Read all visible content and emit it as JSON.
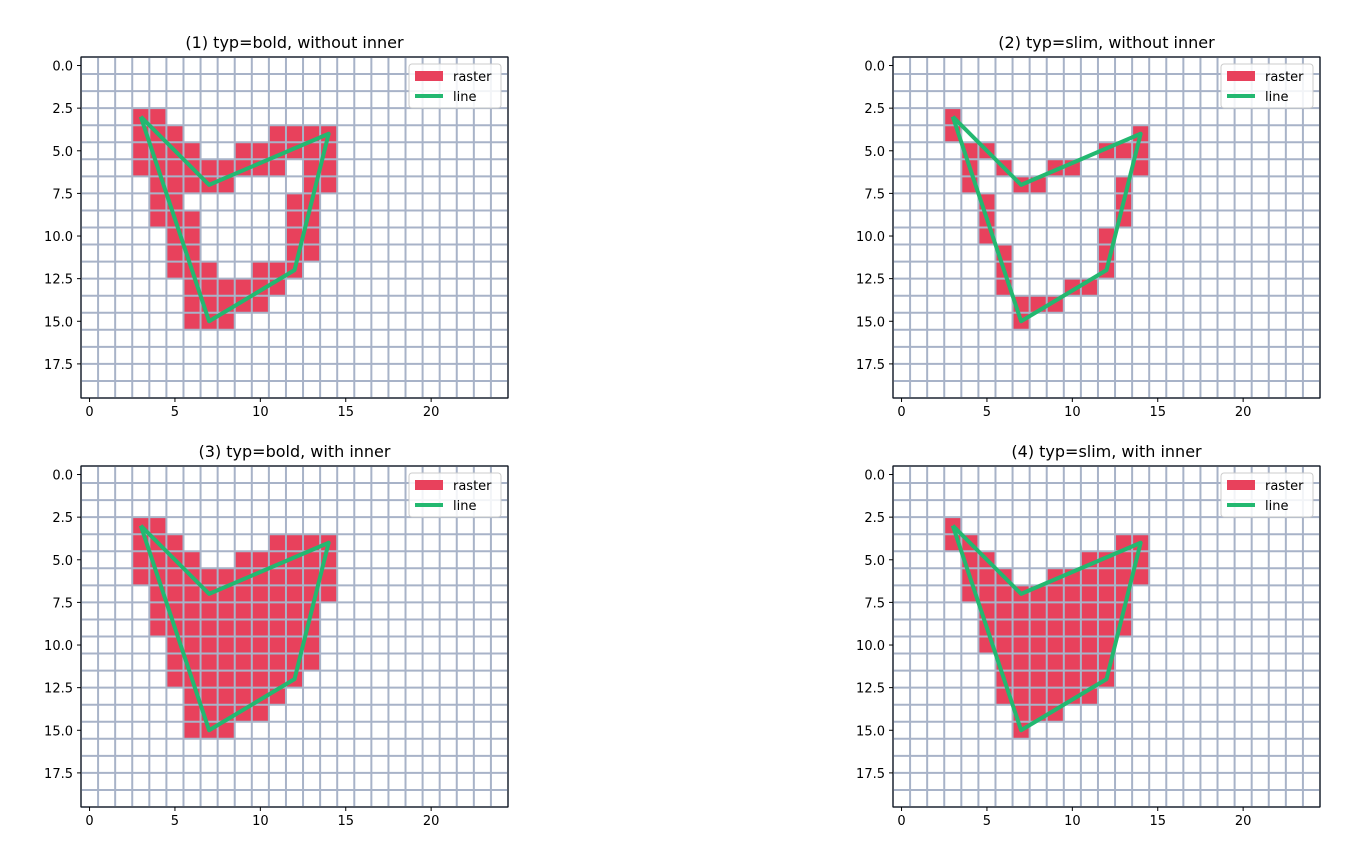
{
  "chart_data": [
    {
      "type": "heatmap",
      "title": "(1) typ=bold, without inner",
      "xlim": [
        -0.5,
        24.5
      ],
      "ylim": [
        19.5,
        -0.5
      ],
      "x_ticks": [
        0,
        5,
        10,
        15,
        20
      ],
      "x_tick_labels": [
        "0",
        "5",
        "10",
        "15",
        "20"
      ],
      "y_ticks": [
        0,
        2.5,
        5,
        7.5,
        10,
        12.5,
        15,
        17.5
      ],
      "y_tick_labels": [
        "0.0",
        "2.5",
        "5.0",
        "7.5",
        "10.0",
        "12.5",
        "15.0",
        "17.5"
      ],
      "grid": true,
      "legend": {
        "placement": "top-right",
        "entries": [
          "raster",
          "line"
        ]
      },
      "raster_cells": [
        [
          3,
          3
        ],
        [
          4,
          3
        ],
        [
          3,
          4
        ],
        [
          4,
          4
        ],
        [
          5,
          4
        ],
        [
          11,
          4
        ],
        [
          12,
          4
        ],
        [
          13,
          4
        ],
        [
          14,
          4
        ],
        [
          3,
          5
        ],
        [
          4,
          5
        ],
        [
          5,
          5
        ],
        [
          6,
          5
        ],
        [
          9,
          5
        ],
        [
          10,
          5
        ],
        [
          11,
          5
        ],
        [
          12,
          5
        ],
        [
          13,
          5
        ],
        [
          14,
          5
        ],
        [
          3,
          6
        ],
        [
          4,
          6
        ],
        [
          5,
          6
        ],
        [
          6,
          6
        ],
        [
          7,
          6
        ],
        [
          8,
          6
        ],
        [
          9,
          6
        ],
        [
          10,
          6
        ],
        [
          11,
          6
        ],
        [
          13,
          6
        ],
        [
          14,
          6
        ],
        [
          4,
          7
        ],
        [
          5,
          7
        ],
        [
          6,
          7
        ],
        [
          7,
          7
        ],
        [
          8,
          7
        ],
        [
          13,
          7
        ],
        [
          14,
          7
        ],
        [
          4,
          8
        ],
        [
          5,
          8
        ],
        [
          12,
          8
        ],
        [
          13,
          8
        ],
        [
          4,
          9
        ],
        [
          5,
          9
        ],
        [
          6,
          9
        ],
        [
          12,
          9
        ],
        [
          13,
          9
        ],
        [
          5,
          10
        ],
        [
          6,
          10
        ],
        [
          12,
          10
        ],
        [
          13,
          10
        ],
        [
          5,
          11
        ],
        [
          6,
          11
        ],
        [
          12,
          11
        ],
        [
          13,
          11
        ],
        [
          5,
          12
        ],
        [
          6,
          12
        ],
        [
          7,
          12
        ],
        [
          10,
          12
        ],
        [
          11,
          12
        ],
        [
          12,
          12
        ],
        [
          6,
          13
        ],
        [
          7,
          13
        ],
        [
          8,
          13
        ],
        [
          9,
          13
        ],
        [
          10,
          13
        ],
        [
          11,
          13
        ],
        [
          6,
          14
        ],
        [
          7,
          14
        ],
        [
          8,
          14
        ],
        [
          9,
          14
        ],
        [
          10,
          14
        ],
        [
          6,
          15
        ],
        [
          7,
          15
        ],
        [
          8,
          15
        ]
      ],
      "line": [
        [
          3,
          3
        ],
        [
          7,
          7
        ],
        [
          14,
          4
        ],
        [
          12,
          12
        ],
        [
          7,
          15
        ],
        [
          3,
          3
        ]
      ]
    },
    {
      "type": "heatmap",
      "title": "(2) typ=slim, without inner",
      "xlim": [
        -0.5,
        24.5
      ],
      "ylim": [
        19.5,
        -0.5
      ],
      "x_ticks": [
        0,
        5,
        10,
        15,
        20
      ],
      "x_tick_labels": [
        "0",
        "5",
        "10",
        "15",
        "20"
      ],
      "y_ticks": [
        0,
        2.5,
        5,
        7.5,
        10,
        12.5,
        15,
        17.5
      ],
      "y_tick_labels": [
        "0.0",
        "2.5",
        "5.0",
        "7.5",
        "10.0",
        "12.5",
        "15.0",
        "17.5"
      ],
      "grid": true,
      "legend": {
        "placement": "top-right",
        "entries": [
          "raster",
          "line"
        ]
      },
      "raster_cells": [
        [
          3,
          3
        ],
        [
          3,
          4
        ],
        [
          14,
          4
        ],
        [
          4,
          5
        ],
        [
          5,
          5
        ],
        [
          12,
          5
        ],
        [
          13,
          5
        ],
        [
          14,
          5
        ],
        [
          4,
          6
        ],
        [
          6,
          6
        ],
        [
          9,
          6
        ],
        [
          10,
          6
        ],
        [
          14,
          6
        ],
        [
          4,
          7
        ],
        [
          7,
          7
        ],
        [
          8,
          7
        ],
        [
          13,
          7
        ],
        [
          5,
          8
        ],
        [
          13,
          8
        ],
        [
          5,
          9
        ],
        [
          13,
          9
        ],
        [
          5,
          10
        ],
        [
          12,
          10
        ],
        [
          6,
          11
        ],
        [
          12,
          11
        ],
        [
          6,
          12
        ],
        [
          12,
          12
        ],
        [
          6,
          13
        ],
        [
          10,
          13
        ],
        [
          11,
          13
        ],
        [
          7,
          14
        ],
        [
          8,
          14
        ],
        [
          9,
          14
        ],
        [
          7,
          15
        ]
      ],
      "line": [
        [
          3,
          3
        ],
        [
          7,
          7
        ],
        [
          14,
          4
        ],
        [
          12,
          12
        ],
        [
          7,
          15
        ],
        [
          3,
          3
        ]
      ]
    },
    {
      "type": "heatmap",
      "title": "(3) typ=bold, with inner",
      "xlim": [
        -0.5,
        24.5
      ],
      "ylim": [
        19.5,
        -0.5
      ],
      "x_ticks": [
        0,
        5,
        10,
        15,
        20
      ],
      "x_tick_labels": [
        "0",
        "5",
        "10",
        "15",
        "20"
      ],
      "y_ticks": [
        0,
        2.5,
        5,
        7.5,
        10,
        12.5,
        15,
        17.5
      ],
      "y_tick_labels": [
        "0.0",
        "2.5",
        "5.0",
        "7.5",
        "10.0",
        "12.5",
        "15.0",
        "17.5"
      ],
      "grid": true,
      "legend": {
        "placement": "top-right",
        "entries": [
          "raster",
          "line"
        ]
      },
      "raster_cells": [
        [
          3,
          3
        ],
        [
          4,
          3
        ],
        [
          3,
          4
        ],
        [
          4,
          4
        ],
        [
          5,
          4
        ],
        [
          11,
          4
        ],
        [
          12,
          4
        ],
        [
          13,
          4
        ],
        [
          14,
          4
        ],
        [
          3,
          5
        ],
        [
          4,
          5
        ],
        [
          5,
          5
        ],
        [
          6,
          5
        ],
        [
          9,
          5
        ],
        [
          10,
          5
        ],
        [
          11,
          5
        ],
        [
          12,
          5
        ],
        [
          13,
          5
        ],
        [
          14,
          5
        ],
        [
          3,
          6
        ],
        [
          4,
          6
        ],
        [
          5,
          6
        ],
        [
          6,
          6
        ],
        [
          7,
          6
        ],
        [
          8,
          6
        ],
        [
          9,
          6
        ],
        [
          10,
          6
        ],
        [
          11,
          6
        ],
        [
          12,
          6
        ],
        [
          13,
          6
        ],
        [
          14,
          6
        ],
        [
          4,
          7
        ],
        [
          5,
          7
        ],
        [
          6,
          7
        ],
        [
          7,
          7
        ],
        [
          8,
          7
        ],
        [
          9,
          7
        ],
        [
          10,
          7
        ],
        [
          11,
          7
        ],
        [
          12,
          7
        ],
        [
          13,
          7
        ],
        [
          14,
          7
        ],
        [
          4,
          8
        ],
        [
          5,
          8
        ],
        [
          6,
          8
        ],
        [
          7,
          8
        ],
        [
          8,
          8
        ],
        [
          9,
          8
        ],
        [
          10,
          8
        ],
        [
          11,
          8
        ],
        [
          12,
          8
        ],
        [
          13,
          8
        ],
        [
          4,
          9
        ],
        [
          5,
          9
        ],
        [
          6,
          9
        ],
        [
          7,
          9
        ],
        [
          8,
          9
        ],
        [
          9,
          9
        ],
        [
          10,
          9
        ],
        [
          11,
          9
        ],
        [
          12,
          9
        ],
        [
          13,
          9
        ],
        [
          5,
          10
        ],
        [
          6,
          10
        ],
        [
          7,
          10
        ],
        [
          8,
          10
        ],
        [
          9,
          10
        ],
        [
          10,
          10
        ],
        [
          11,
          10
        ],
        [
          12,
          10
        ],
        [
          13,
          10
        ],
        [
          5,
          11
        ],
        [
          6,
          11
        ],
        [
          7,
          11
        ],
        [
          8,
          11
        ],
        [
          9,
          11
        ],
        [
          10,
          11
        ],
        [
          11,
          11
        ],
        [
          12,
          11
        ],
        [
          13,
          11
        ],
        [
          5,
          12
        ],
        [
          6,
          12
        ],
        [
          7,
          12
        ],
        [
          8,
          12
        ],
        [
          9,
          12
        ],
        [
          10,
          12
        ],
        [
          11,
          12
        ],
        [
          12,
          12
        ],
        [
          6,
          13
        ],
        [
          7,
          13
        ],
        [
          8,
          13
        ],
        [
          9,
          13
        ],
        [
          10,
          13
        ],
        [
          11,
          13
        ],
        [
          6,
          14
        ],
        [
          7,
          14
        ],
        [
          8,
          14
        ],
        [
          9,
          14
        ],
        [
          10,
          14
        ],
        [
          6,
          15
        ],
        [
          7,
          15
        ],
        [
          8,
          15
        ]
      ],
      "line": [
        [
          3,
          3
        ],
        [
          7,
          7
        ],
        [
          14,
          4
        ],
        [
          12,
          12
        ],
        [
          7,
          15
        ],
        [
          3,
          3
        ]
      ]
    },
    {
      "type": "heatmap",
      "title": "(4) typ=slim, with inner",
      "xlim": [
        -0.5,
        24.5
      ],
      "ylim": [
        19.5,
        -0.5
      ],
      "x_ticks": [
        0,
        5,
        10,
        15,
        20
      ],
      "x_tick_labels": [
        "0",
        "5",
        "10",
        "15",
        "20"
      ],
      "y_ticks": [
        0,
        2.5,
        5,
        7.5,
        10,
        12.5,
        15,
        17.5
      ],
      "y_tick_labels": [
        "0.0",
        "2.5",
        "5.0",
        "7.5",
        "10.0",
        "12.5",
        "15.0",
        "17.5"
      ],
      "grid": true,
      "legend": {
        "placement": "top-right",
        "entries": [
          "raster",
          "line"
        ]
      },
      "raster_cells": [
        [
          3,
          3
        ],
        [
          3,
          4
        ],
        [
          4,
          4
        ],
        [
          13,
          4
        ],
        [
          14,
          4
        ],
        [
          4,
          5
        ],
        [
          5,
          5
        ],
        [
          11,
          5
        ],
        [
          12,
          5
        ],
        [
          13,
          5
        ],
        [
          14,
          5
        ],
        [
          4,
          6
        ],
        [
          5,
          6
        ],
        [
          6,
          6
        ],
        [
          9,
          6
        ],
        [
          10,
          6
        ],
        [
          11,
          6
        ],
        [
          12,
          6
        ],
        [
          13,
          6
        ],
        [
          14,
          6
        ],
        [
          4,
          7
        ],
        [
          5,
          7
        ],
        [
          6,
          7
        ],
        [
          7,
          7
        ],
        [
          8,
          7
        ],
        [
          9,
          7
        ],
        [
          10,
          7
        ],
        [
          11,
          7
        ],
        [
          12,
          7
        ],
        [
          13,
          7
        ],
        [
          5,
          8
        ],
        [
          6,
          8
        ],
        [
          7,
          8
        ],
        [
          8,
          8
        ],
        [
          9,
          8
        ],
        [
          10,
          8
        ],
        [
          11,
          8
        ],
        [
          12,
          8
        ],
        [
          13,
          8
        ],
        [
          5,
          9
        ],
        [
          6,
          9
        ],
        [
          7,
          9
        ],
        [
          8,
          9
        ],
        [
          9,
          9
        ],
        [
          10,
          9
        ],
        [
          11,
          9
        ],
        [
          12,
          9
        ],
        [
          13,
          9
        ],
        [
          5,
          10
        ],
        [
          6,
          10
        ],
        [
          7,
          10
        ],
        [
          8,
          10
        ],
        [
          9,
          10
        ],
        [
          10,
          10
        ],
        [
          11,
          10
        ],
        [
          12,
          10
        ],
        [
          6,
          11
        ],
        [
          7,
          11
        ],
        [
          8,
          11
        ],
        [
          9,
          11
        ],
        [
          10,
          11
        ],
        [
          11,
          11
        ],
        [
          12,
          11
        ],
        [
          6,
          12
        ],
        [
          7,
          12
        ],
        [
          8,
          12
        ],
        [
          9,
          12
        ],
        [
          10,
          12
        ],
        [
          11,
          12
        ],
        [
          12,
          12
        ],
        [
          6,
          13
        ],
        [
          7,
          13
        ],
        [
          8,
          13
        ],
        [
          9,
          13
        ],
        [
          10,
          13
        ],
        [
          11,
          13
        ],
        [
          7,
          14
        ],
        [
          8,
          14
        ],
        [
          9,
          14
        ],
        [
          7,
          15
        ]
      ],
      "line": [
        [
          3,
          3
        ],
        [
          7,
          7
        ],
        [
          14,
          4
        ],
        [
          12,
          12
        ],
        [
          7,
          15
        ],
        [
          3,
          3
        ]
      ]
    }
  ],
  "colors": {
    "raster": "#e8415c",
    "line": "#23b870",
    "grid": "#a8b3c8",
    "axes": "#000000",
    "legend_border": "#cccccc"
  }
}
